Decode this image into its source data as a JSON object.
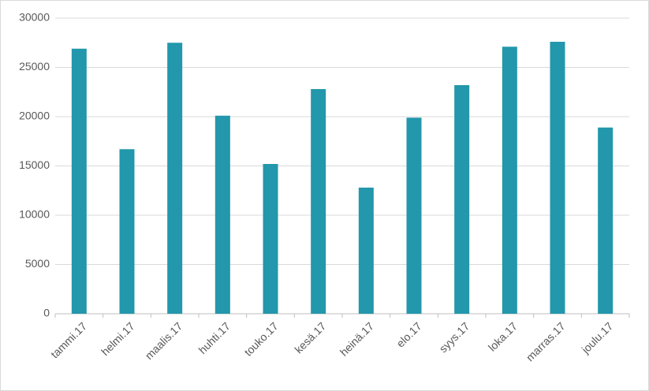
{
  "chart_data": {
    "type": "bar",
    "categories": [
      "tammi.17",
      "helmi.17",
      "maalis.17",
      "huhti.17",
      "touko.17",
      "kesä.17",
      "heinä.17",
      "elo.17",
      "syys.17",
      "loka.17",
      "marras.17",
      "joulu.17"
    ],
    "values": [
      26900,
      16700,
      27500,
      20100,
      15200,
      22800,
      12800,
      19900,
      23200,
      27100,
      27600,
      18900
    ],
    "color": "#2397ab",
    "ylim": [
      0,
      30000
    ],
    "yticks": [
      0,
      5000,
      10000,
      15000,
      20000,
      25000,
      30000
    ],
    "grid": true
  }
}
